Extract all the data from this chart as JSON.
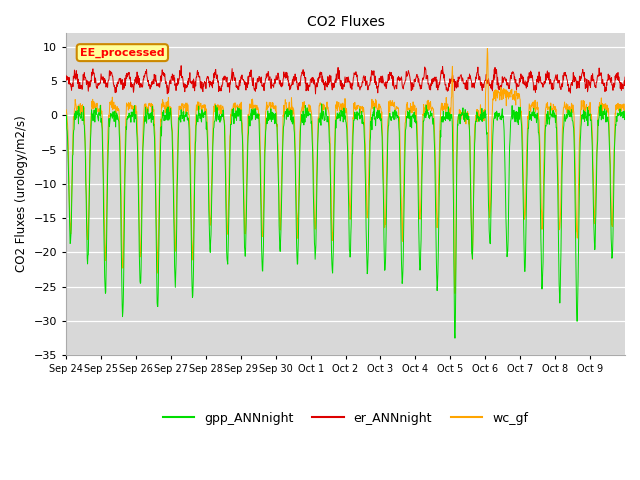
{
  "title": "CO2 Fluxes",
  "ylabel": "CO2 Fluxes (urology/m2/s)",
  "xlabel": "",
  "ylim": [
    -35,
    12
  ],
  "yticks": [
    -35,
    -30,
    -25,
    -20,
    -15,
    -10,
    -5,
    0,
    5,
    10
  ],
  "background_color": "#ffffff",
  "plot_bg_color": "#d8d8d8",
  "grid_color": "#ffffff",
  "colors": {
    "gpp": "#00dd00",
    "er": "#dd0000",
    "wc": "#ffa500"
  },
  "legend_labels": [
    "gpp_ANNnight",
    "er_ANNnight",
    "wc_gf"
  ],
  "annotation_text": "EE_processed",
  "annotation_bg": "#ffff99",
  "annotation_edge": "#cc8800",
  "n_days": 16,
  "points_per_day": 96,
  "xtick_labels": [
    "Sep 24",
    "Sep 25",
    "Sep 26",
    "Sep 27",
    "Sep 28",
    "Sep 29",
    "Sep 30",
    "Oct 1",
    "Oct 2",
    "Oct 3",
    "Oct 4",
    "Oct 5",
    "Oct 6",
    "Oct 7",
    "Oct 8",
    "Oct 9"
  ]
}
